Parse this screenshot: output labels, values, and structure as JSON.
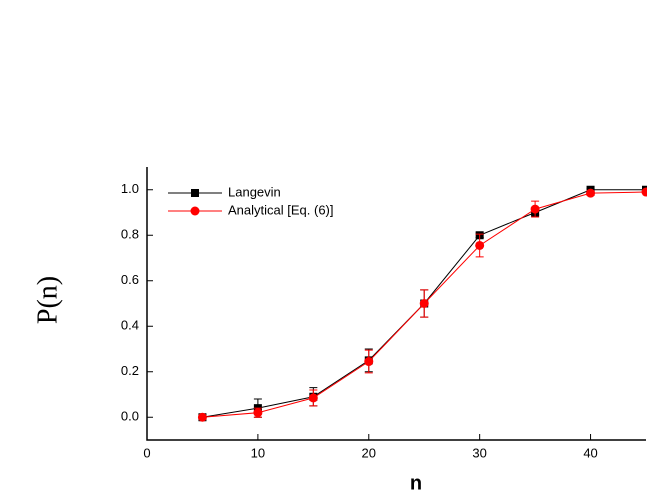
{
  "chart_data": {
    "type": "line",
    "x_label": "n",
    "y_label": "P(n)",
    "x": [
      5,
      10,
      15,
      20,
      25,
      30,
      35,
      40,
      45
    ],
    "series": [
      {
        "name": "Langevin",
        "color": "#000000",
        "marker": "square",
        "values": [
          0,
          0.04,
          0.09,
          0.25,
          0.5,
          0.8,
          0.9,
          1.0,
          1.0
        ],
        "errors": [
          0,
          0.04,
          0.04,
          0.05,
          0.06,
          0.01,
          0.01,
          0.005,
          0
        ]
      },
      {
        "name": "Analytical [Eq. (6)]",
        "color": "#ff0000",
        "marker": "circle",
        "values": [
          0,
          0.02,
          0.085,
          0.245,
          0.5,
          0.755,
          0.915,
          0.985,
          0.99
        ],
        "errors": [
          0.005,
          0.02,
          0.035,
          0.05,
          0.06,
          0.05,
          0.035,
          0.01,
          0
        ]
      }
    ],
    "xlim": [
      0,
      45
    ],
    "xticks": [
      0,
      10,
      20,
      30,
      40
    ],
    "ylim": [
      -0.1,
      1.1
    ],
    "yticks": [
      {
        "value": 0,
        "label": "0.0"
      },
      {
        "value": 0.2,
        "label": "0.2"
      },
      {
        "value": 0.4,
        "label": "0.4"
      },
      {
        "value": 0.6,
        "label": "0.6"
      },
      {
        "value": 0.8,
        "label": "0.8"
      },
      {
        "value": 1.0,
        "label": "1.0"
      }
    ],
    "legend": "upper left"
  }
}
